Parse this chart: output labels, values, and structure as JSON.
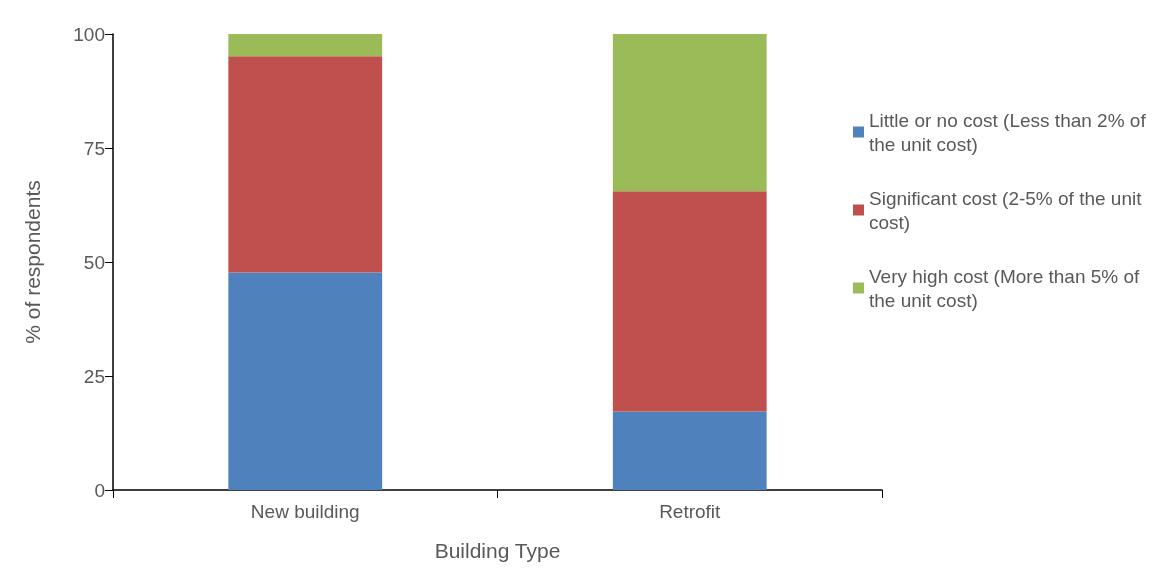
{
  "chart_data": {
    "type": "bar",
    "xlabel": "Building Type",
    "ylabel": "% of respondents",
    "categories": [
      "New building",
      "Retrofit"
    ],
    "stacked": true,
    "legend": "right",
    "ylim": [
      0,
      100
    ],
    "yticks": [
      0,
      25,
      50,
      75,
      100
    ],
    "series": [
      {
        "name": "Little or no cost (Less than 2% of the unit cost)",
        "color": "#4f81bd",
        "values": [
          47.7,
          17.2
        ]
      },
      {
        "name": "Significant cost (2-5% of the unit cost)",
        "color": "#c0504d",
        "values": [
          47.4,
          48.3
        ]
      },
      {
        "name": "Very high cost (More than 5% of the unit cost)",
        "color": "#9bbb59",
        "values": [
          4.9,
          34.5
        ]
      }
    ]
  }
}
